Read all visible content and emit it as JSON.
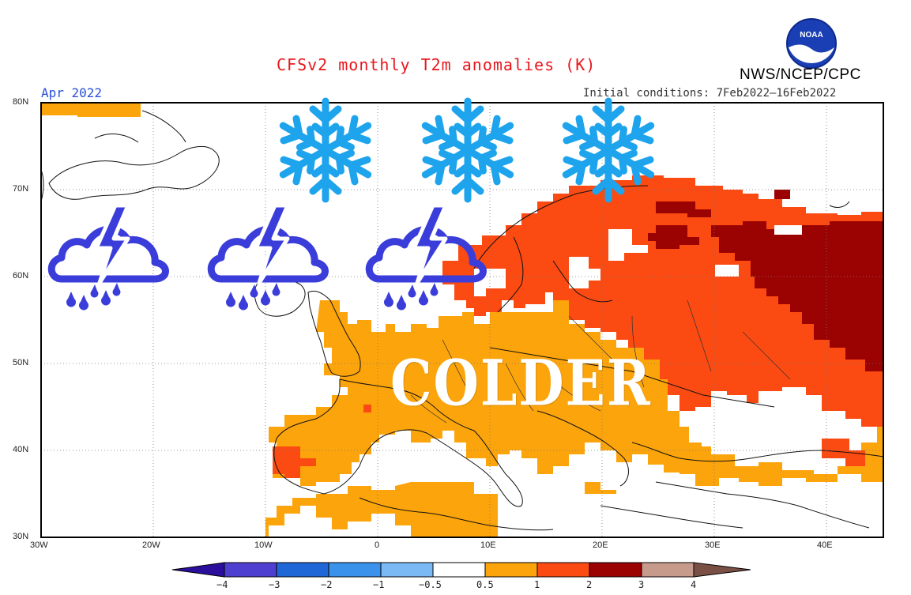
{
  "title": "CFSv2 monthly T2m anomalies (K)",
  "agency": "NWS/NCEP/CPC",
  "logo_text": "NOAA",
  "month_label": "Apr 2022",
  "initial_conditions": "Initial conditions: 7Feb2022—16Feb2022",
  "overlay_text": "COLDER",
  "overlay_icons": [
    "snowflake-icon",
    "snowflake-icon",
    "snowflake-icon",
    "thunderstorm-icon",
    "thunderstorm-icon",
    "thunderstorm-icon"
  ],
  "axes": {
    "lat_labels": [
      "80N",
      "70N",
      "60N",
      "50N",
      "40N",
      "30N"
    ],
    "lon_labels": [
      "30W",
      "20W",
      "10W",
      "0",
      "10E",
      "20E",
      "30E",
      "40E"
    ]
  },
  "colorbar": {
    "labels": [
      "−4",
      "−3",
      "−2",
      "−1",
      "−0.5",
      "0.5",
      "1",
      "2",
      "3",
      "4"
    ],
    "colors": [
      "#2b0f9c",
      "#4f3fd0",
      "#1f66d6",
      "#3a92ea",
      "#7ab9f3",
      "#ffffff",
      "#fca40b",
      "#fb4a12",
      "#9b0202",
      "#c79b8c",
      "#7a5045"
    ]
  },
  "colors": {
    "anomaly_0_5_to_1": "#fca40b",
    "anomaly_1_to_2": "#fb4a12",
    "anomaly_2_to_3": "#9b0202",
    "snowflake": "#1ea4ec",
    "thunderstorm": "#3b3ddb",
    "title": "#e8161b"
  }
}
